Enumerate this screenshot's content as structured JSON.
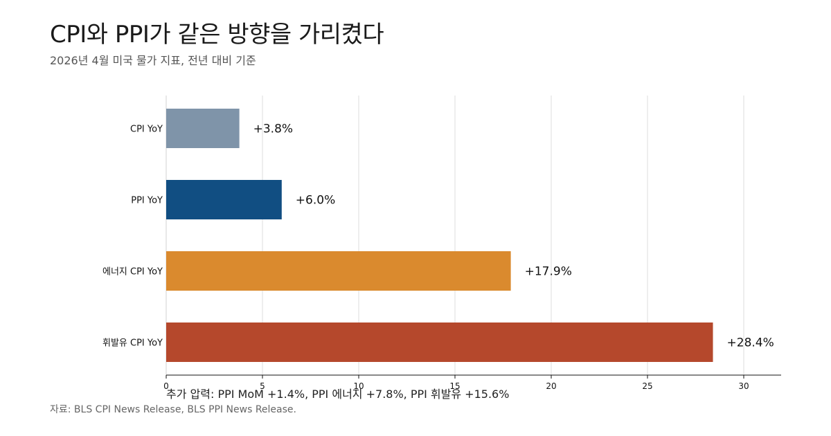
{
  "header": {
    "title": "CPI와 PPI가 같은 방향을 가리켰다",
    "subtitle": "2026년 4월 미국 물가 지표, 전년 대비 기준"
  },
  "footer": {
    "note": "추가 압력: PPI MoM +1.4%, PPI 에너지 +7.8%, PPI 휘발유 +15.6%",
    "source": "자료: BLS CPI News Release, BLS PPI News Release."
  },
  "chart_data": {
    "type": "bar",
    "orientation": "horizontal",
    "categories": [
      "CPI YoY",
      "PPI YoY",
      "에너지 CPI YoY",
      "휘발유 CPI YoY"
    ],
    "values": [
      3.8,
      6.0,
      17.9,
      28.4
    ],
    "data_labels": [
      "+3.8%",
      "+6.0%",
      "+17.9%",
      "+28.4%"
    ],
    "colors": [
      "#7f94a9",
      "#114e82",
      "#da8a2e",
      "#b5482c"
    ],
    "xlim": [
      0,
      31.2
    ],
    "xticks": [
      0,
      5,
      10,
      15,
      20,
      25,
      30
    ],
    "grid": true,
    "legend": "none"
  }
}
